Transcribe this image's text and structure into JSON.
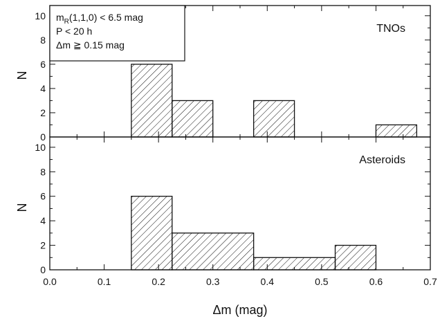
{
  "chart_data": [
    {
      "type": "bar",
      "panel": "top",
      "annotation": "TNOs",
      "ylabel": "N",
      "xlim": [
        0.0,
        0.7
      ],
      "ylim": [
        0,
        10.5
      ],
      "yticks": [
        "0",
        "2",
        "4",
        "6",
        "8",
        "10"
      ],
      "bins": [
        {
          "x0": 0.15,
          "x1": 0.225,
          "value": 6
        },
        {
          "x0": 0.225,
          "x1": 0.3,
          "value": 3
        },
        {
          "x0": 0.375,
          "x1": 0.45,
          "value": 3
        },
        {
          "x0": 0.6,
          "x1": 0.675,
          "value": 1
        }
      ],
      "legend": {
        "placement": "top-left",
        "lines": [
          {
            "main": "m",
            "sub": "R",
            "rest": "(1,1,0) < 6.5 mag"
          },
          {
            "main": "P <  20 h",
            "sub": "",
            "rest": ""
          },
          {
            "main": "Δm ≧ 0.15 mag",
            "sub": "",
            "rest": ""
          }
        ]
      }
    },
    {
      "type": "bar",
      "panel": "bottom",
      "annotation": "Asteroids",
      "ylabel": "N",
      "xlabel": "Δm (mag)",
      "xlim": [
        0.0,
        0.7
      ],
      "ylim": [
        0,
        10.5
      ],
      "xticks": [
        "0.0",
        "0.1",
        "0.2",
        "0.3",
        "0.4",
        "0.5",
        "0.6",
        "0.7"
      ],
      "yticks": [
        "0",
        "2",
        "4",
        "6",
        "8",
        "10"
      ],
      "bins": [
        {
          "x0": 0.15,
          "x1": 0.225,
          "value": 6
        },
        {
          "x0": 0.225,
          "x1": 0.375,
          "value": 3
        },
        {
          "x0": 0.375,
          "x1": 0.525,
          "value": 1
        },
        {
          "x0": 0.525,
          "x1": 0.6,
          "value": 2
        }
      ]
    }
  ],
  "colors": {
    "line": "#111111",
    "hatch": "#111111",
    "background": "#ffffff"
  }
}
